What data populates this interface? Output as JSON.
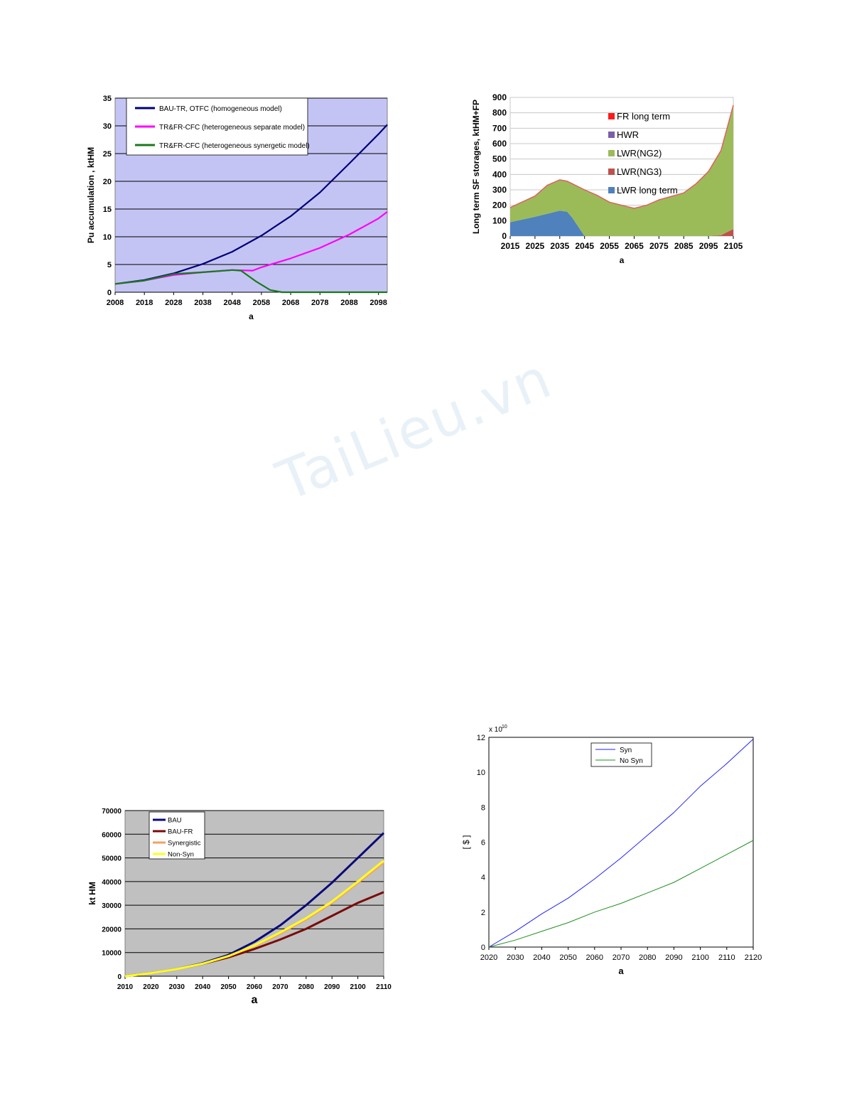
{
  "watermark": "TaiLieu.vn",
  "chart_data": [
    {
      "type": "line",
      "title": "",
      "xlabel": "a",
      "ylabel": "Pu accumulation , ktHM",
      "xlim": [
        2008,
        2101
      ],
      "ylim": [
        0,
        35
      ],
      "xticks": [
        "2008",
        "2018",
        "2028",
        "2038",
        "2048",
        "2058",
        "2068",
        "2078",
        "2088",
        "2098"
      ],
      "yticks": [
        "0",
        "5",
        "10",
        "15",
        "20",
        "25",
        "30",
        "35"
      ],
      "grid": true,
      "plot_bg": "#c4c4f4",
      "legend_position": "top",
      "series": [
        {
          "name": "BAU-TR, OTFC (homogeneous model)",
          "color": "#00007a",
          "x": [
            2008,
            2018,
            2028,
            2038,
            2048,
            2058,
            2068,
            2078,
            2088,
            2098,
            2101
          ],
          "y": [
            1.5,
            2.2,
            3.4,
            5.1,
            7.3,
            10.2,
            13.7,
            18.0,
            23.2,
            28.5,
            30.2
          ]
        },
        {
          "name": "TR&FR-CFC  (heterogeneous separate model)",
          "color": "#ff00ff",
          "x": [
            2008,
            2018,
            2028,
            2038,
            2048,
            2055,
            2058,
            2068,
            2078,
            2088,
            2098,
            2101
          ],
          "y": [
            1.5,
            2.1,
            3.1,
            3.6,
            4.0,
            3.9,
            4.5,
            6.1,
            8.0,
            10.4,
            13.3,
            14.5
          ]
        },
        {
          "name": "TR&FR-CFC (heterogeneous synergetic model)",
          "color": "#1a7a1a",
          "x": [
            2008,
            2018,
            2028,
            2038,
            2048,
            2051,
            2056,
            2061,
            2065,
            2078,
            2088,
            2098,
            2101
          ],
          "y": [
            1.5,
            2.1,
            3.3,
            3.6,
            4.0,
            3.9,
            2.0,
            0.4,
            0.0,
            0.0,
            0.0,
            0.0,
            0.0
          ]
        }
      ]
    },
    {
      "type": "area",
      "title": "",
      "xlabel": "a",
      "ylabel": "Long term SF storages, ktHM+FP",
      "xlim": [
        2015,
        2105
      ],
      "ylim": [
        0,
        900
      ],
      "xticks": [
        "2015",
        "2025",
        "2035",
        "2045",
        "2055",
        "2065",
        "2075",
        "2085",
        "2095",
        "2105"
      ],
      "yticks": [
        "0",
        "100",
        "200",
        "300",
        "400",
        "500",
        "600",
        "700",
        "800",
        "900"
      ],
      "grid": true,
      "legend_position": "inside-center",
      "legend": [
        {
          "name": "FR long term",
          "color": "#ff1a1a"
        },
        {
          "name": "HWR",
          "color": "#7b5ea7"
        },
        {
          "name": "LWR(NG2)",
          "color": "#9bbb59"
        },
        {
          "name": "LWR(NG3)",
          "color": "#c0504d"
        },
        {
          "name": "LWR long term",
          "color": "#4f81bd"
        }
      ],
      "x": [
        2015,
        2025,
        2030,
        2035,
        2038,
        2040,
        2045,
        2050,
        2055,
        2065,
        2070,
        2075,
        2085,
        2090,
        2095,
        2100,
        2103,
        2105
      ],
      "series": [
        {
          "name": "LWR long term",
          "values": [
            90,
            125,
            145,
            165,
            158,
            120,
            0,
            0,
            0,
            0,
            0,
            0,
            0,
            0,
            0,
            0,
            0,
            0
          ]
        },
        {
          "name": "LWR(NG3)",
          "values": [
            0,
            0,
            0,
            0,
            0,
            0,
            0,
            0,
            0,
            0,
            0,
            0,
            0,
            0,
            0,
            5,
            30,
            45
          ]
        },
        {
          "name": "LWR(NG2)",
          "values": [
            95,
            135,
            185,
            200,
            198,
            220,
            300,
            265,
            220,
            180,
            200,
            235,
            280,
            340,
            420,
            550,
            700,
            805
          ]
        },
        {
          "name": "HWR",
          "values": [
            0,
            0,
            0,
            0,
            0,
            0,
            0,
            0,
            0,
            0,
            0,
            0,
            0,
            0,
            0,
            0,
            0,
            0
          ]
        },
        {
          "name": "FR long term",
          "values": [
            0,
            0,
            0,
            0,
            0,
            0,
            0,
            0,
            0,
            0,
            0,
            0,
            0,
            0,
            0,
            0,
            0,
            0
          ]
        }
      ]
    },
    {
      "type": "line",
      "title": "",
      "xlabel": "a",
      "ylabel": "kt HM",
      "xlim": [
        2010,
        2110
      ],
      "ylim": [
        0,
        70000
      ],
      "xticks": [
        "2010",
        "2020",
        "2030",
        "2040",
        "2050",
        "2060",
        "2070",
        "2080",
        "2090",
        "2100",
        "2110"
      ],
      "yticks": [
        "0",
        "10000",
        "20000",
        "30000",
        "40000",
        "50000",
        "60000",
        "70000"
      ],
      "grid": true,
      "plot_bg": "#c0c0c0",
      "legend_position": "top-left",
      "series": [
        {
          "name": "BAU",
          "color": "#0a0a7a",
          "x": [
            2010,
            2020,
            2030,
            2040,
            2050,
            2060,
            2070,
            2080,
            2090,
            2100,
            2110
          ],
          "y": [
            0,
            1300,
            3000,
            5500,
            9000,
            14500,
            21500,
            30000,
            39500,
            50000,
            60500
          ]
        },
        {
          "name": "BAU-FR",
          "color": "#7a0a0a",
          "x": [
            2010,
            2020,
            2030,
            2040,
            2050,
            2060,
            2070,
            2080,
            2090,
            2100,
            2110
          ],
          "y": [
            0,
            1300,
            3000,
            5200,
            8000,
            11500,
            15500,
            20000,
            25500,
            31000,
            35500
          ]
        },
        {
          "name": "Synergistic",
          "color": "#f4a060",
          "x": [
            2010,
            2020,
            2030,
            2040,
            2050,
            2060,
            2070,
            2080,
            2090,
            2100,
            2110
          ],
          "y": [
            0,
            1300,
            3000,
            5300,
            8500,
            12800,
            18000,
            24000,
            31000,
            39500,
            48000
          ]
        },
        {
          "name": "Non-Syn",
          "color": "#ffff20",
          "x": [
            2010,
            2020,
            2030,
            2040,
            2050,
            2060,
            2070,
            2080,
            2090,
            2100,
            2110
          ],
          "y": [
            0,
            1300,
            3000,
            5300,
            8500,
            13000,
            18500,
            24500,
            31500,
            40000,
            48800
          ]
        }
      ]
    },
    {
      "type": "line",
      "title": "",
      "xlabel": "a",
      "ylabel": "[ $ ]",
      "y_scale_label": "x 10",
      "y_scale_exponent": "10",
      "xlim": [
        2020,
        2120
      ],
      "ylim": [
        0,
        12
      ],
      "xticks": [
        "2020",
        "2030",
        "2040",
        "2050",
        "2060",
        "2070",
        "2080",
        "2090",
        "2100",
        "2110",
        "2120"
      ],
      "yticks": [
        "0",
        "2",
        "4",
        "6",
        "8",
        "10",
        "12"
      ],
      "grid": false,
      "legend_position": "top-center",
      "series": [
        {
          "name": "Syn",
          "color": "#2020ff",
          "x": [
            2020,
            2030,
            2040,
            2050,
            2060,
            2070,
            2080,
            2090,
            2100,
            2110,
            2120
          ],
          "y": [
            0,
            0.9,
            1.9,
            2.8,
            3.9,
            5.1,
            6.4,
            7.7,
            9.2,
            10.5,
            11.9
          ]
        },
        {
          "name": "No Syn",
          "color": "#209020",
          "x": [
            2020,
            2030,
            2040,
            2050,
            2060,
            2070,
            2080,
            2090,
            2100,
            2110,
            2120
          ],
          "y": [
            0,
            0.4,
            0.9,
            1.4,
            2.0,
            2.5,
            3.1,
            3.7,
            4.5,
            5.3,
            6.1
          ]
        }
      ]
    }
  ]
}
